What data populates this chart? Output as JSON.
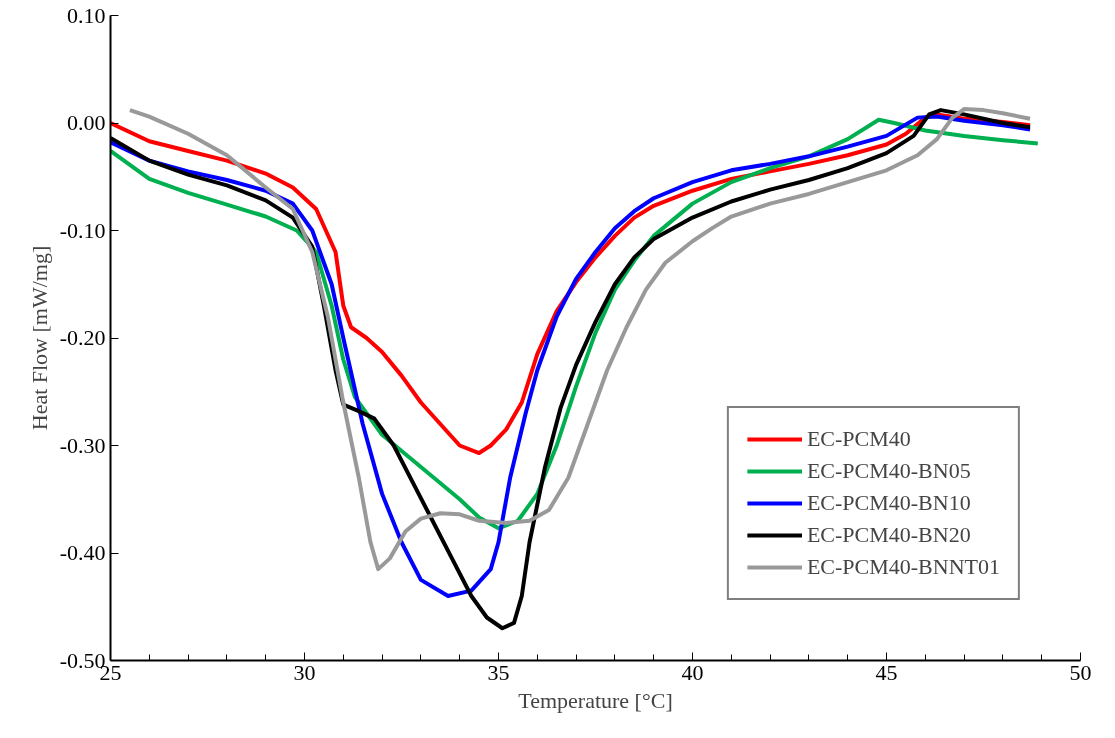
{
  "chart_data": {
    "type": "line",
    "xlabel": "Temperature [°C]",
    "ylabel": "Heat Flow [mW/mg]",
    "xlim": [
      25,
      50
    ],
    "ylim": [
      -0.5,
      0.1
    ],
    "xticks": [
      25,
      {
        "value": 26,
        "label": null
      },
      {
        "value": 27,
        "label": null
      },
      {
        "value": 28,
        "label": null
      },
      {
        "value": 29,
        "label": null
      },
      30,
      {
        "value": 31,
        "label": null
      },
      {
        "value": 32,
        "label": null
      },
      {
        "value": 33,
        "label": null
      },
      {
        "value": 34,
        "label": null
      },
      35,
      {
        "value": 36,
        "label": null
      },
      {
        "value": 37,
        "label": null
      },
      {
        "value": 38,
        "label": null
      },
      {
        "value": 39,
        "label": null
      },
      40,
      {
        "value": 41,
        "label": null
      },
      {
        "value": 42,
        "label": null
      },
      {
        "value": 43,
        "label": null
      },
      {
        "value": 44,
        "label": null
      },
      45,
      {
        "value": 46,
        "label": null
      },
      {
        "value": 47,
        "label": null
      },
      {
        "value": 48,
        "label": null
      },
      {
        "value": 49,
        "label": null
      },
      50
    ],
    "yticks": [
      {
        "value": -0.5,
        "label": "-0.50"
      },
      {
        "value": -0.4,
        "label": "-0.40"
      },
      {
        "value": -0.3,
        "label": "-0.30"
      },
      {
        "value": -0.2,
        "label": "-0.20"
      },
      {
        "value": -0.1,
        "label": "-0.10"
      },
      {
        "value": 0,
        "label": "0.00"
      },
      {
        "value": 0.1,
        "label": "0.10"
      }
    ],
    "grid": false,
    "legend": "bottom right",
    "marker": "none",
    "line_style": "solid",
    "series": [
      {
        "name": "EC-PCM40",
        "color": "#ff0000",
        "x": [
          25,
          26,
          27,
          28,
          29,
          29.7,
          30.3,
          30.8,
          31.0,
          31.2,
          31.6,
          32,
          32.5,
          33,
          33.5,
          34,
          34.5,
          34.8,
          35.2,
          35.6,
          36,
          36.5,
          37,
          37.5,
          38,
          38.5,
          39,
          40,
          41,
          42,
          43,
          44,
          45,
          45.5,
          46,
          46.3,
          47,
          48,
          48.7
        ],
        "values": [
          0.0,
          -0.017,
          -0.026,
          -0.035,
          -0.047,
          -0.06,
          -0.08,
          -0.12,
          -0.17,
          -0.19,
          -0.2,
          -0.213,
          -0.235,
          -0.26,
          -0.28,
          -0.3,
          -0.307,
          -0.3,
          -0.285,
          -0.26,
          -0.215,
          -0.175,
          -0.148,
          -0.125,
          -0.105,
          -0.088,
          -0.077,
          -0.063,
          -0.052,
          -0.045,
          -0.038,
          -0.03,
          -0.02,
          -0.01,
          0.005,
          0.008,
          0.004,
          0.001,
          -0.002
        ]
      },
      {
        "name": "EC-PCM40-BN05",
        "color": "#00b050",
        "x": [
          25,
          26,
          27,
          28,
          29,
          29.8,
          30.3,
          30.7,
          31,
          31.3,
          32,
          33,
          34,
          34.5,
          35,
          35.5,
          36,
          36.5,
          37,
          37.5,
          38,
          38.5,
          39,
          40,
          41,
          42,
          43,
          44,
          44.8,
          45.2,
          46,
          47,
          48,
          48.9
        ],
        "values": [
          -0.026,
          -0.052,
          -0.065,
          -0.076,
          -0.087,
          -0.1,
          -0.12,
          -0.17,
          -0.22,
          -0.255,
          -0.29,
          -0.32,
          -0.35,
          -0.367,
          -0.377,
          -0.37,
          -0.345,
          -0.3,
          -0.245,
          -0.195,
          -0.155,
          -0.128,
          -0.105,
          -0.075,
          -0.055,
          -0.042,
          -0.031,
          -0.015,
          0.003,
          0.0,
          -0.007,
          -0.012,
          -0.016,
          -0.019
        ]
      },
      {
        "name": "EC-PCM40-BN10",
        "color": "#0000ff",
        "x": [
          25,
          26,
          27,
          28,
          29,
          29.7,
          30.2,
          30.7,
          31,
          31.5,
          32,
          32.5,
          33,
          33.7,
          34.3,
          34.8,
          35,
          35.3,
          35.7,
          36,
          36.5,
          37,
          37.5,
          38,
          38.5,
          39,
          40,
          41,
          42,
          43,
          44,
          45,
          45.8,
          46.3,
          47,
          48,
          48.7
        ],
        "values": [
          -0.018,
          -0.035,
          -0.045,
          -0.053,
          -0.063,
          -0.075,
          -0.1,
          -0.15,
          -0.2,
          -0.28,
          -0.345,
          -0.39,
          -0.425,
          -0.44,
          -0.435,
          -0.415,
          -0.39,
          -0.33,
          -0.27,
          -0.23,
          -0.18,
          -0.145,
          -0.12,
          -0.098,
          -0.082,
          -0.07,
          -0.055,
          -0.044,
          -0.038,
          -0.031,
          -0.022,
          -0.012,
          0.005,
          0.006,
          0.002,
          -0.002,
          -0.006
        ]
      },
      {
        "name": "EC-PCM40-BN20",
        "color": "#000000",
        "x": [
          25,
          26,
          27,
          28,
          29,
          29.7,
          30.2,
          30.5,
          30.8,
          31,
          31.4,
          31.8,
          32.3,
          32.8,
          33.3,
          33.8,
          34.3,
          34.7,
          35.1,
          35.4,
          35.6,
          35.8,
          36.2,
          36.6,
          37,
          37.5,
          38,
          38.5,
          39,
          40,
          41,
          42,
          43,
          44,
          45,
          45.7,
          46.1,
          46.4,
          47,
          48,
          48.7
        ],
        "values": [
          -0.014,
          -0.035,
          -0.048,
          -0.058,
          -0.072,
          -0.088,
          -0.115,
          -0.17,
          -0.23,
          -0.262,
          -0.268,
          -0.275,
          -0.3,
          -0.335,
          -0.37,
          -0.405,
          -0.44,
          -0.46,
          -0.47,
          -0.465,
          -0.44,
          -0.39,
          -0.32,
          -0.265,
          -0.225,
          -0.185,
          -0.15,
          -0.125,
          -0.108,
          -0.088,
          -0.073,
          -0.062,
          -0.053,
          -0.042,
          -0.028,
          -0.012,
          0.008,
          0.012,
          0.008,
          0.0,
          -0.004
        ]
      },
      {
        "name": "EC-PCM40-BNNT01",
        "color": "#999999",
        "x": [
          25.5,
          26,
          27,
          28,
          29,
          29.7,
          30.2,
          30.6,
          31,
          31.4,
          31.7,
          31.9,
          32.2,
          32.6,
          33,
          33.5,
          34,
          34.5,
          35.2,
          35.8,
          36.3,
          36.8,
          37.3,
          37.8,
          38.3,
          38.8,
          39.3,
          40,
          40.5,
          41,
          42,
          43,
          44,
          45,
          45.8,
          46.3,
          46.7,
          47,
          47.5,
          48,
          48.7
        ],
        "values": [
          0.012,
          0.006,
          -0.01,
          -0.03,
          -0.06,
          -0.08,
          -0.12,
          -0.18,
          -0.26,
          -0.33,
          -0.39,
          -0.415,
          -0.405,
          -0.38,
          -0.368,
          -0.363,
          -0.364,
          -0.37,
          -0.372,
          -0.37,
          -0.36,
          -0.33,
          -0.28,
          -0.23,
          -0.19,
          -0.155,
          -0.13,
          -0.11,
          -0.098,
          -0.087,
          -0.075,
          -0.066,
          -0.055,
          -0.044,
          -0.03,
          -0.015,
          0.005,
          0.013,
          0.012,
          0.009,
          0.004
        ]
      }
    ]
  }
}
